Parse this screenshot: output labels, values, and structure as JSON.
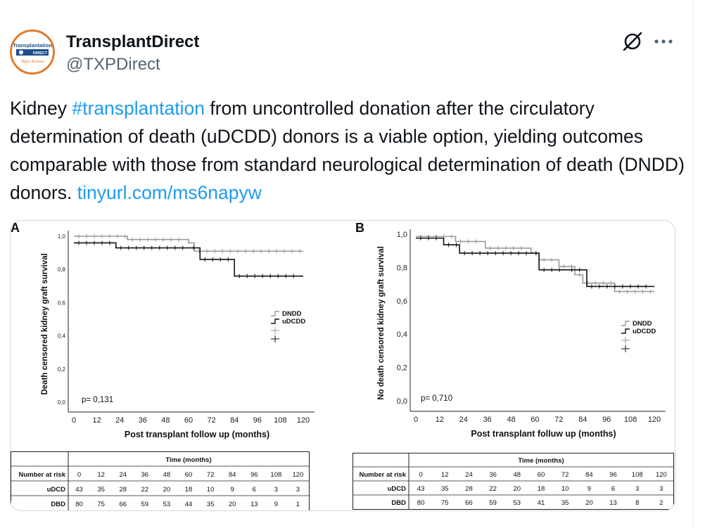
{
  "author": {
    "name": "TransplantDirect",
    "handle": "@TXPDirect",
    "avatar_text": "Transplantation",
    "avatar_sub": "DIRECT",
    "avatar_open": "Open Access"
  },
  "actions": {
    "grok_icon": "grok-icon",
    "more_icon": "more-icon"
  },
  "tweet": {
    "text_start": "Kidney ",
    "hashtag": "#transplantation",
    "text_middle": " from uncontrolled donation after the circulatory determination of death (uDCDD) donors is a viable option, yielding outcomes comparable with those from standard neurological determination of death (DNDD) donors. ",
    "link": "tinyurl.com/ms6napyw"
  },
  "chart_data": [
    {
      "type": "line",
      "panel_label": "A",
      "ylabel": "Death censored kidney graft survival",
      "xlabel": "Post transplant follow up (months)",
      "xticks": [
        "0",
        "12",
        "24",
        "36",
        "48",
        "60",
        "72",
        "84",
        "96",
        "108",
        "120"
      ],
      "yticks": [
        "0,0",
        "0,2",
        "0,4",
        "0,6",
        "0,8",
        "1,0"
      ],
      "xlim": [
        0,
        120
      ],
      "ylim": [
        0,
        1
      ],
      "pvalue": "p= 0,131",
      "legend": [
        "DNDD",
        "uDCDD"
      ],
      "legend_position": "right",
      "series": [
        {
          "name": "DNDD",
          "color": "#999999",
          "x": [
            0,
            28,
            60,
            63,
            120
          ],
          "y": [
            1.0,
            0.98,
            0.96,
            0.91,
            0.91
          ]
        },
        {
          "name": "uDCDD",
          "color": "#111111",
          "x": [
            0,
            22,
            60,
            66,
            84,
            120
          ],
          "y": [
            0.96,
            0.93,
            0.93,
            0.86,
            0.76,
            0.76
          ]
        }
      ],
      "risk_table": {
        "title": "Time (months)",
        "header_label": "Number at risk",
        "times": [
          "0",
          "12",
          "24",
          "36",
          "48",
          "60",
          "72",
          "84",
          "96",
          "108",
          "120"
        ],
        "rows": [
          {
            "label": "uDCD",
            "values": [
              "43",
              "35",
              "28",
              "22",
              "20",
              "18",
              "10",
              "9",
              "6",
              "3",
              "3"
            ]
          },
          {
            "label": "DBD",
            "values": [
              "80",
              "75",
              "66",
              "59",
              "53",
              "44",
              "35",
              "20",
              "13",
              "9",
              "1"
            ]
          }
        ]
      }
    },
    {
      "type": "line",
      "panel_label": "B",
      "ylabel": "No death censored kidney graft survival",
      "xlabel": "Post transplant folluw up (months)",
      "xticks": [
        "0",
        "12",
        "24",
        "36",
        "48",
        "60",
        "72",
        "84",
        "96",
        "108",
        "120"
      ],
      "yticks": [
        "0,0",
        "0,2",
        "0,4",
        "0,6",
        "0,8",
        "1,0"
      ],
      "xlim": [
        0,
        120
      ],
      "ylim": [
        0,
        1
      ],
      "pvalue": "p= 0,710",
      "legend": [
        "DNDD",
        "uDCDD"
      ],
      "legend_position": "right",
      "series": [
        {
          "name": "DNDD",
          "color": "#999999",
          "x": [
            0,
            20,
            35,
            58,
            62,
            72,
            80,
            84,
            100,
            120
          ],
          "y": [
            0.99,
            0.96,
            0.92,
            0.89,
            0.85,
            0.81,
            0.76,
            0.71,
            0.66,
            0.66
          ]
        },
        {
          "name": "uDCDD",
          "color": "#111111",
          "x": [
            0,
            14,
            22,
            58,
            62,
            76,
            86,
            120
          ],
          "y": [
            0.98,
            0.94,
            0.89,
            0.89,
            0.79,
            0.79,
            0.69,
            0.69
          ]
        }
      ],
      "risk_table": {
        "title": "Time (months)",
        "header_label": "Number at risk",
        "times": [
          "0",
          "12",
          "24",
          "36",
          "48",
          "60",
          "72",
          "84",
          "96",
          "108",
          "120"
        ],
        "rows": [
          {
            "label": "uDCD",
            "values": [
              "43",
              "35",
              "28",
              "22",
              "20",
              "18",
              "10",
              "9",
              "6",
              "3",
              "3"
            ]
          },
          {
            "label": "DBD",
            "values": [
              "80",
              "75",
              "66",
              "59",
              "53",
              "41",
              "35",
              "20",
              "13",
              "8",
              "2"
            ]
          }
        ]
      }
    }
  ]
}
